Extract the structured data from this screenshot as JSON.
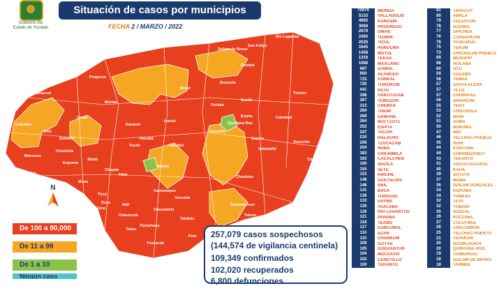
{
  "title": "Situación de casos por municipios",
  "date_label": "FECHA",
  "date_value": "2 / MARZO / 2022",
  "logo": {
    "line1": "Gobierno del",
    "line2": "Estado de Yucatán"
  },
  "north_label": "N",
  "legend": [
    {
      "label": "De 100 a 80,000",
      "color": "#e8401e"
    },
    {
      "label": "De 11 a 99",
      "color": "#f5a623"
    },
    {
      "label": "De 1 a 10",
      "color": "#8bc34a"
    },
    {
      "label": "Ningún caso",
      "color": "#4fc3c7"
    }
  ],
  "stats": [
    "257,079 casos sospechosos",
    "(144,574 de vigilancia centinela)",
    "109,349 confirmados",
    "102,020 recuperados",
    "6,800 defunciones"
  ],
  "colors": {
    "accent": "#1a3a6e",
    "high": "#e8401e",
    "mid": "#f5a623",
    "name_red": "#e8401e"
  },
  "table_left": [
    {
      "n": "70676",
      "m": "MÉRIDA"
    },
    {
      "n": "5133",
      "m": "VALLADOLID"
    },
    {
      "n": "4665",
      "m": "KANASÍN"
    },
    {
      "n": "3094",
      "m": "PROGRESO"
    },
    {
      "n": "2679",
      "m": "UMÁN"
    },
    {
      "n": "2460",
      "m": "TIZIMÍN"
    },
    {
      "n": "2026",
      "m": "TICUL"
    },
    {
      "n": "1645",
      "m": "HUNUCMÁ"
    },
    {
      "n": "1408",
      "m": "MOTUL"
    },
    {
      "n": "1316",
      "m": "TEKAX"
    },
    {
      "n": "1086",
      "m": "MAXCANÚ"
    },
    {
      "n": "987",
      "m": "IZAMAL"
    },
    {
      "n": "950",
      "m": "ACANCEH"
    },
    {
      "n": "723",
      "m": "CONKAL"
    },
    {
      "n": "720",
      "m": "TIXKOKOB"
    },
    {
      "n": "441",
      "m": "PETO"
    },
    {
      "n": "398",
      "m": "OXKUTZCAB"
    },
    {
      "n": "367",
      "m": "TEMOZÓN"
    },
    {
      "n": "313",
      "m": "CHEMAX"
    },
    {
      "n": "284",
      "m": "TINUM"
    },
    {
      "n": "268",
      "m": "SAMAHIL"
    },
    {
      "n": "264",
      "m": "BUCTZOTZ"
    },
    {
      "n": "252",
      "m": "ESPITA"
    },
    {
      "n": "247",
      "m": "TECOH"
    },
    {
      "n": "210",
      "m": "HALACHÓ"
    },
    {
      "n": "206",
      "m": "TZUCACAB"
    },
    {
      "n": "204",
      "m": "HUNA"
    },
    {
      "n": "183",
      "m": "CHICHIMILÁ"
    },
    {
      "n": "163",
      "m": "CACALCHÉN"
    },
    {
      "n": "160",
      "m": "SUCILÁ"
    },
    {
      "n": "155",
      "m": "SEYÉ"
    },
    {
      "n": "153",
      "m": "KINCHIL"
    },
    {
      "n": "148",
      "m": "SAN FELIPE"
    },
    {
      "n": "146",
      "m": "AKIL"
    },
    {
      "n": "141",
      "m": "BACA"
    },
    {
      "n": "136",
      "m": "TIXPÉUAL"
    },
    {
      "n": "133",
      "m": "UAYMA"
    },
    {
      "n": "130",
      "m": "YAXCABÁ"
    },
    {
      "n": "126",
      "m": "RÍO LAGARTOS"
    },
    {
      "n": "121",
      "m": "PANABÁ"
    },
    {
      "n": "118",
      "m": "TEABO"
    },
    {
      "n": "117",
      "m": "CUNCUNUL"
    },
    {
      "n": "110",
      "m": "DZAN"
    },
    {
      "n": "110",
      "m": "CHANKOM"
    },
    {
      "n": "109",
      "m": "DZITÁS"
    },
    {
      "n": "105",
      "m": "DZIDZANTÚN"
    },
    {
      "n": "104",
      "m": "MOCOCHÁ"
    },
    {
      "n": "102",
      "m": "CENOTILLO"
    },
    {
      "n": "100",
      "m": "TEKANTÓ"
    }
  ],
  "table_right": [
    {
      "n": "81",
      "m": "TAHUCUY"
    },
    {
      "n": "80",
      "m": "ABALÁ"
    },
    {
      "n": "79",
      "m": "CELESTÚN"
    },
    {
      "n": "78",
      "m": "DZEMUL"
    },
    {
      "n": "77",
      "m": "OPICHÉN"
    },
    {
      "n": "76",
      "m": "CANSAHCAB"
    },
    {
      "n": "76",
      "m": "YAXKUKUL"
    },
    {
      "n": "75",
      "m": "TEKOM"
    },
    {
      "n": "73",
      "m": "CHICXULUB PUEBLO"
    },
    {
      "n": "69",
      "m": "MUXUPIP"
    },
    {
      "n": "68",
      "m": "HOCABÁ"
    },
    {
      "n": "60",
      "m": "UCÚ"
    },
    {
      "n": "59",
      "m": "CUZAMÁ"
    },
    {
      "n": "58",
      "m": "TEMAX"
    },
    {
      "n": "57",
      "m": "SANTA ELENA"
    },
    {
      "n": "57",
      "m": "TETIZ"
    },
    {
      "n": "57",
      "m": "CHUMAYEL"
    },
    {
      "n": "56",
      "m": "SINANCHÉ"
    },
    {
      "n": "55",
      "m": "TEKIT"
    },
    {
      "n": "53",
      "m": "CHOCHOLÁ"
    },
    {
      "n": "52",
      "m": "MANÍ"
    },
    {
      "n": "51",
      "m": "SUMA"
    },
    {
      "n": "50",
      "m": "BOKOBÁ"
    },
    {
      "n": "47",
      "m": "MÍO"
    },
    {
      "n": "46",
      "m": "TELCHAC PUEBLO"
    },
    {
      "n": "45",
      "m": "HUHÍ"
    },
    {
      "n": "44",
      "m": "KANTUNIL"
    },
    {
      "n": "44",
      "m": "CHIKINDZONOT"
    },
    {
      "n": "43",
      "m": "TEKANTO"
    },
    {
      "n": "41",
      "m": "TIXCACALCUPUL"
    },
    {
      "n": "40",
      "m": "KAUA"
    },
    {
      "n": "39",
      "m": "SOTUTA"
    },
    {
      "n": "37",
      "m": "MAMA"
    },
    {
      "n": "36",
      "m": "DZILAM GONZÁLEZ"
    },
    {
      "n": "34",
      "m": "KOPOMÁ"
    },
    {
      "n": "34",
      "m": "TUNKÁS"
    },
    {
      "n": "32",
      "m": "TEYA"
    },
    {
      "n": "32",
      "m": "YOBAÍN"
    },
    {
      "n": "30",
      "m": "SUDZAL"
    },
    {
      "n": "29",
      "m": "KOCCHEL"
    },
    {
      "n": "27",
      "m": "CALOTMUL"
    },
    {
      "n": "26",
      "m": "CHACSINKÍN"
    },
    {
      "n": "25",
      "m": "TELCHAC PUERTO"
    },
    {
      "n": "21",
      "m": "TEPAKÁN"
    },
    {
      "n": "20",
      "m": "DZONCAUICH"
    },
    {
      "n": "20",
      "m": "QUINTANA ROO"
    },
    {
      "n": "19",
      "m": "TIXMÉHUAC"
    },
    {
      "n": "18",
      "m": "DZILAM DE BRAVO"
    },
    {
      "n": "18",
      "m": "TAHMEK"
    }
  ],
  "map_labels": [
    "Río Lagartos",
    "San Felipe",
    "Dzilam de Bravo",
    "Panabá",
    "Tizimín",
    "Progreso",
    "Buctzotz",
    "Sucilá",
    "Espita",
    "Calotmul",
    "Hunucmá",
    "Celestún",
    "Mérida",
    "Motul",
    "Izamal",
    "Cenotillo",
    "Temozón",
    "Valladolid",
    "Chemax",
    "Kanasín",
    "Umán",
    "Tetiz",
    "Samahil",
    "Tecoh",
    "Tunkás",
    "Chochola",
    "Kopomá",
    "Abalá",
    "Sotuta",
    "Halachó",
    "Maxcanú",
    "Opichén",
    "Muna",
    "Tekit",
    "Chapab",
    "Ticul",
    "Santa Elena",
    "Oxkutzcab",
    "Yaxcabá",
    "Tekax",
    "Peto",
    "Tzucacab",
    "Chacsinkín",
    "Tahdziu",
    "Chikindzonot",
    "Chankom",
    "Tekom",
    "Uayma",
    "Quintana Roo",
    "Xocchel",
    "Hocabá",
    "Cantamayec",
    "Dzan",
    "Akil",
    "Tixmehuac"
  ]
}
